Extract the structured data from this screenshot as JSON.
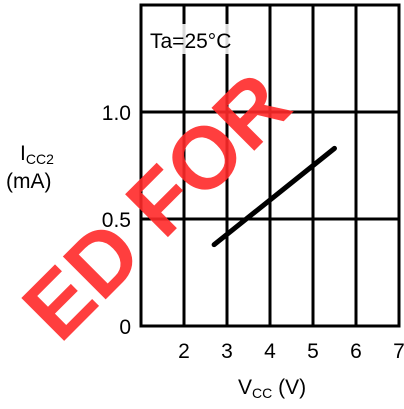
{
  "chart_data": {
    "type": "line",
    "annotation": "Ta=25°C",
    "xlabel_main": "V",
    "xlabel_sub": "CC",
    "xlabel_unit": " (V)",
    "ylabel_main": "I",
    "ylabel_sub": "CC2",
    "ylabel_unit": "(mA)",
    "xlim": [
      1,
      7
    ],
    "ylim": [
      0,
      1.5
    ],
    "x_ticks": [
      {
        "value": 2,
        "label": "2"
      },
      {
        "value": 3,
        "label": "3"
      },
      {
        "value": 4,
        "label": "4"
      },
      {
        "value": 5,
        "label": "5"
      },
      {
        "value": 6,
        "label": "6"
      },
      {
        "value": 7,
        "label": "7"
      }
    ],
    "y_ticks": [
      {
        "value": 0,
        "label": "0"
      },
      {
        "value": 0.5,
        "label": "0.5"
      },
      {
        "value": 1.0,
        "label": "1.0"
      }
    ],
    "grid": true,
    "series": [
      {
        "color": "#000000",
        "x": [
          2.7,
          5.5
        ],
        "y": [
          0.38,
          0.83
        ]
      }
    ]
  },
  "watermark": {
    "text": "ED FOR",
    "color": "#ff2a2a"
  }
}
